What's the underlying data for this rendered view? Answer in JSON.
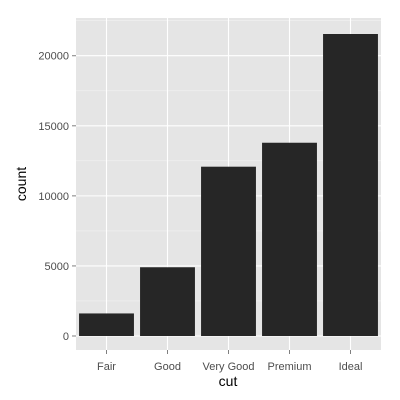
{
  "chart_data": {
    "type": "bar",
    "categories": [
      "Fair",
      "Good",
      "Very Good",
      "Premium",
      "Ideal"
    ],
    "values": [
      1610,
      4906,
      12082,
      13791,
      21551
    ],
    "xlabel": "cut",
    "ylabel": "count",
    "ylim": [
      0,
      22630
    ],
    "yticks": [
      0,
      5000,
      10000,
      15000,
      20000
    ],
    "ytick_labels": [
      "0",
      "5000",
      "10000",
      "15000",
      "20000"
    ],
    "grid": true,
    "colors": {
      "panel_background": "#e5e5e5",
      "grid_major": "#ffffff",
      "grid_minor": "#f2f2f2",
      "bar_fill": "#262626",
      "tick_mark": "#7f7f7f"
    }
  }
}
